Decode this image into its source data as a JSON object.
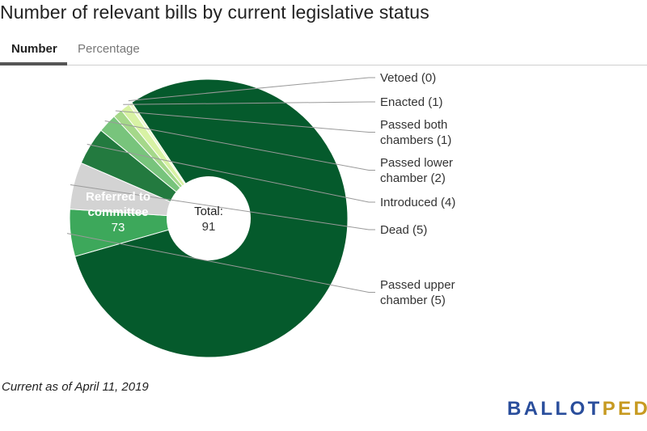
{
  "title": "Number of relevant bills by current legislative status",
  "tabs": {
    "number": "Number",
    "percentage": "Percentage",
    "active": "Number"
  },
  "footnote": "Current as of April 11, 2019",
  "logo": {
    "part1": "BALLOT",
    "part2": "PEDIA"
  },
  "chart_data": {
    "type": "pie",
    "style": "donut",
    "center_label": "Total:",
    "center_value": "91",
    "slices": [
      {
        "label_lines": [
          "Referred to",
          "committee"
        ],
        "value": 73,
        "value_text": "73",
        "color": "#055a2c",
        "label_position": "inside"
      },
      {
        "label_lines": [
          "Passed upper",
          "chamber (5)"
        ],
        "value": 5,
        "color": "#3da85b",
        "label_position": "outside"
      },
      {
        "label_lines": [
          "Dead (5)"
        ],
        "value": 5,
        "color": "#d3d3d3",
        "label_position": "outside"
      },
      {
        "label_lines": [
          "Introduced (4)"
        ],
        "value": 4,
        "color": "#237a3f",
        "label_position": "outside"
      },
      {
        "label_lines": [
          "Passed lower",
          "chamber (2)"
        ],
        "value": 2,
        "color": "#78c47c",
        "label_position": "outside"
      },
      {
        "label_lines": [
          "Passed both",
          "chambers (1)"
        ],
        "value": 1,
        "color": "#a5d88a",
        "label_position": "outside"
      },
      {
        "label_lines": [
          "Enacted (1)"
        ],
        "value": 1,
        "color": "#d8f2a4",
        "label_position": "outside"
      },
      {
        "label_lines": [
          "Vetoed (0)"
        ],
        "value": 0,
        "color": "#eef8cc",
        "label_position": "outside"
      }
    ]
  }
}
